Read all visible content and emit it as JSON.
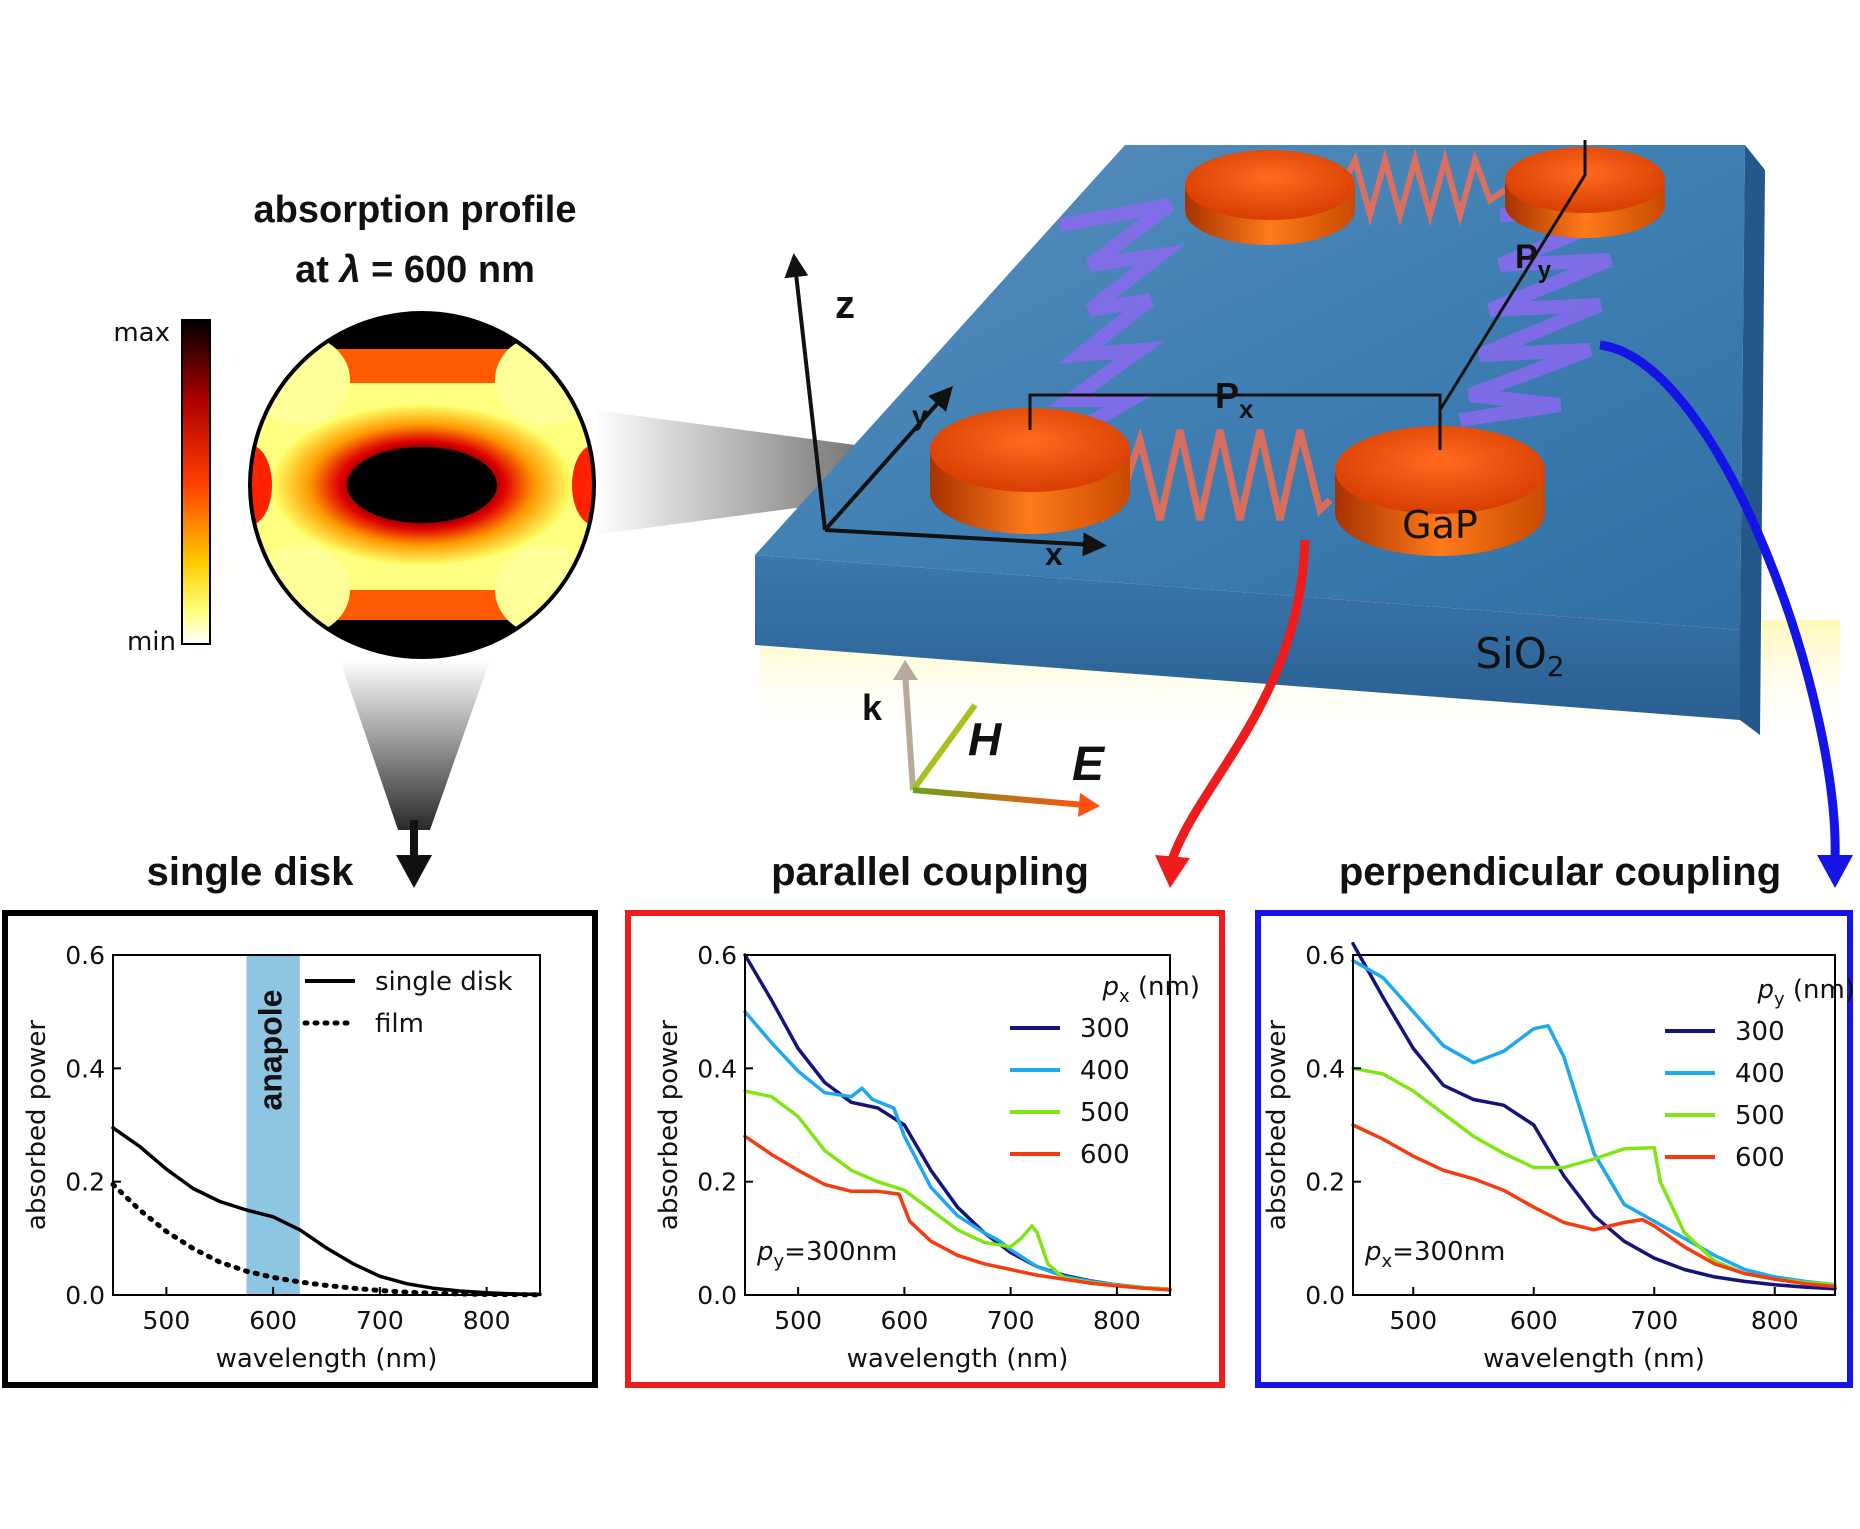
{
  "colormap": {
    "title_line1": "absorption profile",
    "title_line2_prefix": "at ",
    "title_line2_lambda": "λ",
    "title_line2_suffix": " = 600 nm",
    "max_label": "max",
    "min_label": "min"
  },
  "illustration": {
    "axis_z": "z",
    "axis_y": "y",
    "axis_x": "x",
    "px_label": "P",
    "px_sub": "x",
    "py_label": "P",
    "py_sub": "y",
    "disk_label": "GaP",
    "substrate_label": "SiO",
    "substrate_sub": "2",
    "field_k": "k",
    "field_h": "H",
    "field_e": "E"
  },
  "colors": {
    "parallel_box": "#ee1c1c",
    "perpendicular_box": "#1414e6",
    "single_box": "#000000",
    "anapole_band": "#8dc5e3",
    "series_300": "#14147a",
    "series_400": "#1ea8f0",
    "series_500": "#7fe614",
    "series_600": "#f53c10"
  },
  "chart_data": [
    {
      "type": "line",
      "title": "single disk",
      "xlabel": "wavelength (nm)",
      "ylabel": "absorbed power",
      "xlim": [
        450,
        850
      ],
      "ylim": [
        0,
        0.6
      ],
      "xticks": [
        "500",
        "600",
        "700",
        "800"
      ],
      "yticks": [
        "0.0",
        "0.2",
        "0.4",
        "0.6"
      ],
      "band": {
        "label": "anapole",
        "x0": 575,
        "x1": 625
      },
      "legend_position": "top-right",
      "series": [
        {
          "name": "single disk",
          "style": "solid",
          "color": "#000000",
          "x": [
            450,
            475,
            500,
            525,
            550,
            575,
            600,
            625,
            650,
            675,
            700,
            725,
            750,
            775,
            800,
            825,
            850
          ],
          "y": [
            0.295,
            0.262,
            0.222,
            0.188,
            0.165,
            0.15,
            0.138,
            0.115,
            0.083,
            0.055,
            0.033,
            0.02,
            0.012,
            0.007,
            0.004,
            0.002,
            0.001
          ]
        },
        {
          "name": "film",
          "style": "dotted",
          "color": "#000000",
          "x": [
            450,
            475,
            500,
            525,
            550,
            575,
            600,
            625,
            650,
            675,
            700,
            725,
            750,
            775,
            800,
            825,
            850
          ],
          "y": [
            0.195,
            0.15,
            0.112,
            0.082,
            0.058,
            0.042,
            0.031,
            0.023,
            0.017,
            0.012,
            0.008,
            0.005,
            0.003,
            0.002,
            0.001,
            0.0007,
            0.0004
          ]
        }
      ]
    },
    {
      "type": "line",
      "title": "parallel coupling",
      "xlabel": "wavelength (nm)",
      "ylabel": "absorbed power",
      "xlim": [
        450,
        850
      ],
      "ylim": [
        0,
        0.6
      ],
      "xticks": [
        "500",
        "600",
        "700",
        "800"
      ],
      "yticks": [
        "0.0",
        "0.2",
        "0.4",
        "0.6"
      ],
      "legend_title_var": "p",
      "legend_title_sub": "x",
      "legend_title_unit": " (nm)",
      "legend_position": "top-right",
      "annotation_var": "p",
      "annotation_sub": "y",
      "annotation_rest": "=300nm",
      "series": [
        {
          "name": "300",
          "color": "#14147a",
          "x": [
            450,
            475,
            500,
            525,
            550,
            575,
            600,
            625,
            650,
            675,
            700,
            725,
            750,
            775,
            800,
            825,
            850
          ],
          "y": [
            0.6,
            0.52,
            0.435,
            0.375,
            0.34,
            0.33,
            0.3,
            0.22,
            0.155,
            0.11,
            0.075,
            0.05,
            0.035,
            0.025,
            0.018,
            0.013,
            0.01
          ]
        },
        {
          "name": "400",
          "color": "#1ea8f0",
          "x": [
            450,
            475,
            500,
            525,
            550,
            560,
            570,
            590,
            600,
            625,
            650,
            675,
            690,
            700,
            725,
            750,
            775,
            800,
            825,
            850
          ],
          "y": [
            0.5,
            0.445,
            0.395,
            0.357,
            0.35,
            0.365,
            0.345,
            0.33,
            0.28,
            0.19,
            0.14,
            0.11,
            0.095,
            0.08,
            0.05,
            0.033,
            0.024,
            0.018,
            0.013,
            0.01
          ]
        },
        {
          "name": "500",
          "color": "#7fe614",
          "x": [
            450,
            475,
            500,
            525,
            550,
            575,
            600,
            625,
            650,
            675,
            700,
            710,
            720,
            725,
            735,
            750,
            775,
            800,
            825,
            850
          ],
          "y": [
            0.36,
            0.35,
            0.315,
            0.255,
            0.22,
            0.2,
            0.185,
            0.15,
            0.115,
            0.093,
            0.085,
            0.1,
            0.122,
            0.11,
            0.055,
            0.03,
            0.022,
            0.017,
            0.013,
            0.01
          ]
        },
        {
          "name": "600",
          "color": "#f53c10",
          "x": [
            450,
            475,
            500,
            525,
            550,
            575,
            595,
            605,
            625,
            650,
            675,
            700,
            725,
            750,
            775,
            800,
            825,
            850
          ],
          "y": [
            0.28,
            0.248,
            0.22,
            0.195,
            0.183,
            0.183,
            0.178,
            0.13,
            0.095,
            0.07,
            0.055,
            0.045,
            0.035,
            0.028,
            0.021,
            0.016,
            0.012,
            0.009
          ]
        }
      ]
    },
    {
      "type": "line",
      "title": "perpendicular coupling",
      "xlabel": "wavelength (nm)",
      "ylabel": "absorbed power",
      "xlim": [
        450,
        850
      ],
      "ylim": [
        0,
        0.6
      ],
      "xticks": [
        "500",
        "600",
        "700",
        "800"
      ],
      "yticks": [
        "0.0",
        "0.2",
        "0.4",
        "0.6"
      ],
      "legend_title_var": "p",
      "legend_title_sub": "y",
      "legend_title_unit": " (nm)",
      "legend_position": "top-right",
      "annotation_var": "p",
      "annotation_sub": "x",
      "annotation_rest": "=300nm",
      "series": [
        {
          "name": "300",
          "color": "#14147a",
          "x": [
            450,
            475,
            500,
            525,
            550,
            575,
            600,
            625,
            650,
            675,
            700,
            725,
            750,
            775,
            800,
            825,
            850
          ],
          "y": [
            0.62,
            0.525,
            0.435,
            0.37,
            0.345,
            0.335,
            0.3,
            0.21,
            0.14,
            0.095,
            0.065,
            0.045,
            0.032,
            0.024,
            0.018,
            0.014,
            0.011
          ]
        },
        {
          "name": "400",
          "color": "#1ea8f0",
          "x": [
            450,
            475,
            500,
            525,
            550,
            575,
            600,
            612,
            625,
            650,
            675,
            700,
            725,
            750,
            775,
            800,
            825,
            850
          ],
          "y": [
            0.59,
            0.56,
            0.5,
            0.44,
            0.41,
            0.43,
            0.47,
            0.475,
            0.42,
            0.25,
            0.16,
            0.13,
            0.1,
            0.07,
            0.045,
            0.032,
            0.024,
            0.018
          ]
        },
        {
          "name": "500",
          "color": "#7fe614",
          "x": [
            450,
            475,
            500,
            525,
            550,
            575,
            600,
            625,
            650,
            675,
            700,
            705,
            725,
            750,
            775,
            800,
            825,
            850
          ],
          "y": [
            0.4,
            0.39,
            0.36,
            0.32,
            0.28,
            0.25,
            0.225,
            0.225,
            0.24,
            0.258,
            0.26,
            0.2,
            0.11,
            0.06,
            0.038,
            0.028,
            0.022,
            0.018
          ]
        },
        {
          "name": "600",
          "color": "#f53c10",
          "x": [
            450,
            475,
            500,
            525,
            550,
            575,
            600,
            625,
            650,
            675,
            690,
            700,
            725,
            750,
            775,
            800,
            825,
            850
          ],
          "y": [
            0.3,
            0.275,
            0.245,
            0.22,
            0.205,
            0.185,
            0.155,
            0.128,
            0.115,
            0.128,
            0.133,
            0.122,
            0.085,
            0.055,
            0.038,
            0.028,
            0.02,
            0.015
          ]
        }
      ]
    }
  ]
}
